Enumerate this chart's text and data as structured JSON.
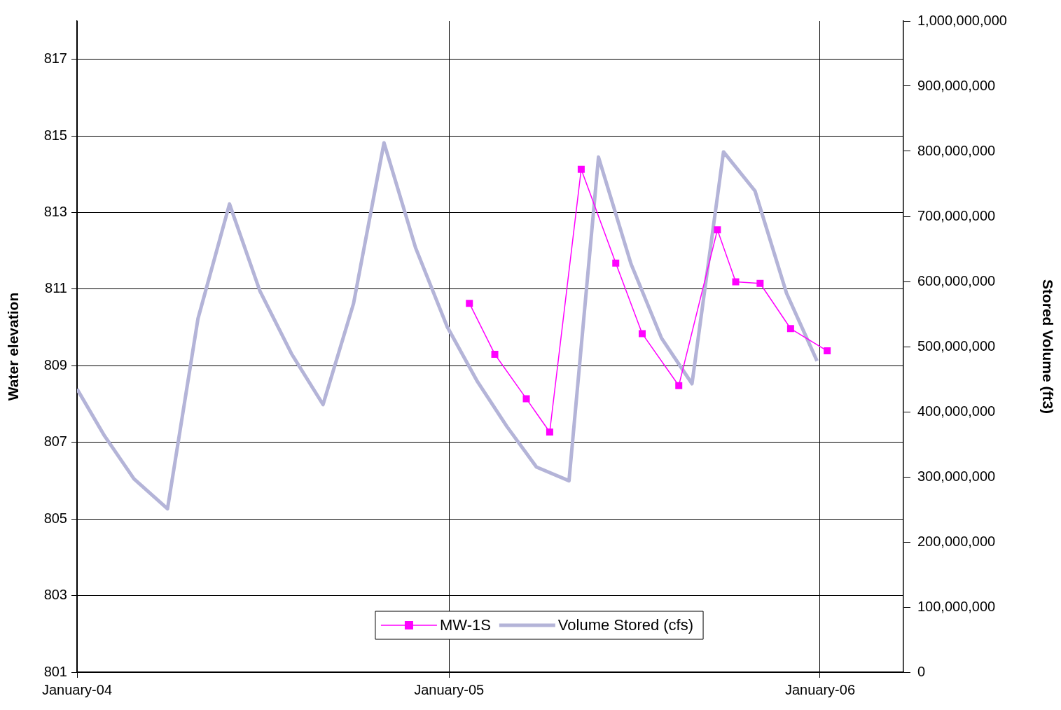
{
  "chart_data": {
    "type": "line",
    "xlabel": null,
    "ylabel": "Water elevation",
    "y2label": "Stored Volume (ft3)",
    "xlim": [
      "2004-01-01",
      "2006-03-24"
    ],
    "xticks": [
      {
        "value": "2004-01-01",
        "label": "January-04"
      },
      {
        "value": "2005-01-01",
        "label": "January-05"
      },
      {
        "value": "2006-01-01",
        "label": "January-06"
      }
    ],
    "ylim": [
      801,
      818
    ],
    "yticks": [
      801,
      803,
      805,
      807,
      809,
      811,
      813,
      815,
      817
    ],
    "y2lim": [
      0,
      1000000000
    ],
    "y2ticks": [
      {
        "value": 0,
        "label": "0"
      },
      {
        "value": 100000000,
        "label": "100,000,000"
      },
      {
        "value": 200000000,
        "label": "200,000,000"
      },
      {
        "value": 300000000,
        "label": "300,000,000"
      },
      {
        "value": 400000000,
        "label": "400,000,000"
      },
      {
        "value": 500000000,
        "label": "500,000,000"
      },
      {
        "value": 600000000,
        "label": "600,000,000"
      },
      {
        "value": 700000000,
        "label": "700,000,000"
      },
      {
        "value": 800000000,
        "label": "800,000,000"
      },
      {
        "value": 900000000,
        "label": "900,000,000"
      },
      {
        "value": 1000000000,
        "label": "1,000,000,000"
      }
    ],
    "grid": true,
    "legend": "bottom",
    "series": [
      {
        "name": "MW-1S",
        "color": "#ff00ff",
        "marker": "square",
        "x": [
          "2005-01-21",
          "2005-02-15",
          "2005-03-18",
          "2005-04-10",
          "2005-05-11",
          "2005-06-14",
          "2005-07-10",
          "2005-08-15",
          "2005-09-22",
          "2005-10-10",
          "2005-11-03",
          "2005-12-03",
          "2006-01-08"
        ],
        "values": [
          810.63,
          809.3,
          808.14,
          807.27,
          814.13,
          811.68,
          809.84,
          808.48,
          812.55,
          811.19,
          811.15,
          809.97,
          809.39
        ]
      },
      {
        "name": "Volume Stored (cfs)",
        "color": "#b4b4d8",
        "marker": "none",
        "axis": "y2",
        "x": [
          "2004-01-01",
          "2004-01-28",
          "2004-02-26",
          "2004-03-30",
          "2004-04-29",
          "2004-05-30",
          "2004-06-29",
          "2004-07-30",
          "2004-08-30",
          "2004-09-29",
          "2004-10-29",
          "2004-11-29",
          "2004-12-30",
          "2005-01-29",
          "2005-02-27",
          "2005-03-28",
          "2005-04-29",
          "2005-05-28",
          "2005-06-29",
          "2005-07-29",
          "2005-08-28",
          "2005-09-28",
          "2005-10-29",
          "2005-11-29",
          "2005-12-29"
        ],
        "values": [
          435000000,
          363000000,
          297000000,
          251000000,
          543000000,
          719000000,
          585000000,
          489000000,
          411000000,
          566000000,
          813000000,
          652000000,
          531000000,
          446000000,
          377000000,
          315000000,
          294000000,
          791000000,
          627000000,
          513000000,
          443000000,
          799000000,
          739000000,
          582000000,
          478000000
        ]
      }
    ]
  }
}
